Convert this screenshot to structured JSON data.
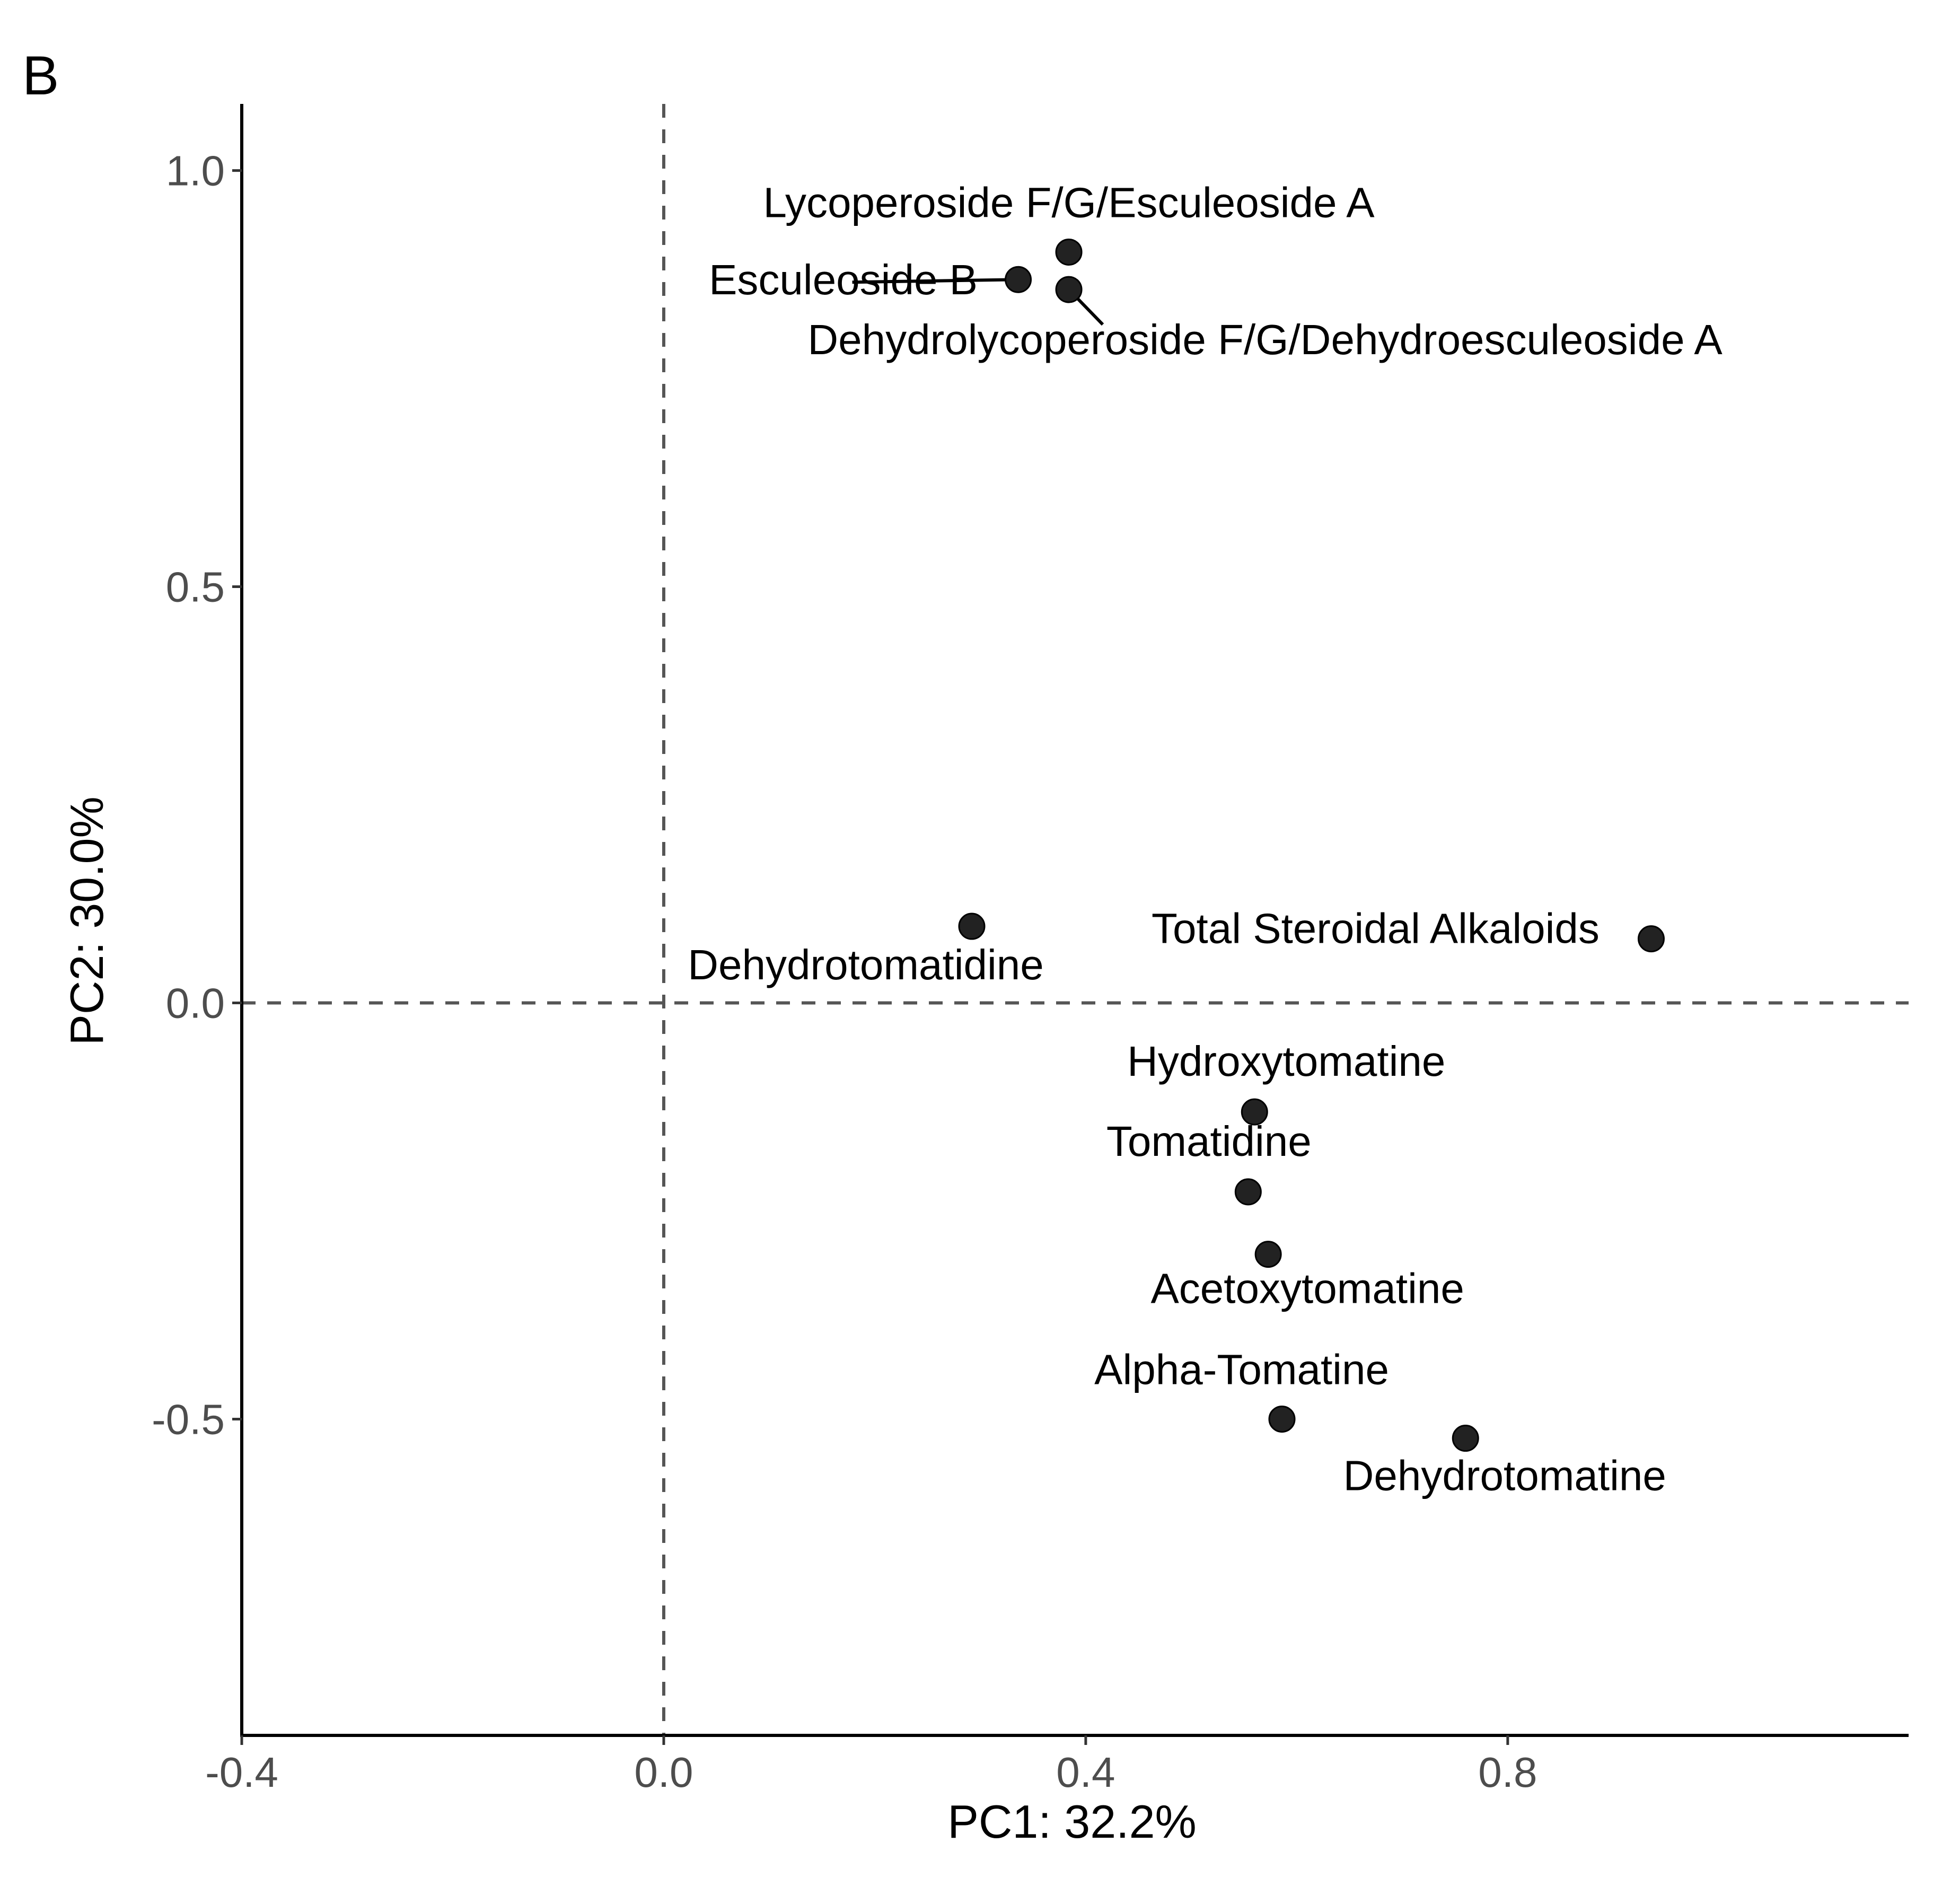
{
  "panel_label": "B",
  "chart_data": {
    "type": "scatter",
    "xlabel": "PC1: 32.2%",
    "ylabel": "PC2: 30.0%",
    "xlim": [
      -0.4,
      1.18
    ],
    "ylim": [
      -0.88,
      1.08
    ],
    "x_ticks": [
      -0.4,
      0.0,
      0.4,
      0.8
    ],
    "x_tick_labels": [
      "-0.4",
      "0.0",
      "0.4",
      "0.8"
    ],
    "y_ticks": [
      -0.5,
      0.0,
      0.5,
      1.0
    ],
    "y_tick_labels": [
      "-0.5",
      "0.0",
      "0.5",
      "1.0"
    ],
    "reference_lines": {
      "x": 0,
      "y": 0,
      "style": "dashed"
    },
    "grid": false,
    "point_color": "#222222",
    "points": [
      {
        "label": "Lycoperoside F/G/Esculeoside A",
        "x": 0.384,
        "y": 0.902
      },
      {
        "label": "Esculeoside B",
        "x": 0.336,
        "y": 0.869
      },
      {
        "label": "Dehydrolycoperoside F/G/Dehydroesculeoside A",
        "x": 0.384,
        "y": 0.857
      },
      {
        "label": "Dehydrotomatidine",
        "x": 0.292,
        "y": 0.092
      },
      {
        "label": "Total Steroidal Alkaloids",
        "x": 0.936,
        "y": 0.077
      },
      {
        "label": "Hydroxytomatine",
        "x": 0.56,
        "y": -0.131
      },
      {
        "label": "Tomatidine",
        "x": 0.554,
        "y": -0.227
      },
      {
        "label": "Acetoxytomatine",
        "x": 0.573,
        "y": -0.302
      },
      {
        "label": "Alpha-Tomatine",
        "x": 0.586,
        "y": -0.5
      },
      {
        "label": "Dehydrotomatine",
        "x": 0.76,
        "y": -0.523
      }
    ]
  }
}
